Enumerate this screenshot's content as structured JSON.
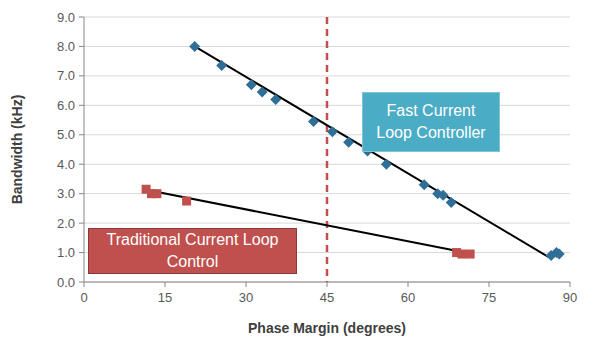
{
  "chart_data": {
    "type": "scatter",
    "x_label": "Phase Margin (degrees)",
    "y_label": "Bandwidth (kHz)",
    "xlim": [
      0,
      90
    ],
    "xticks": [
      0,
      15,
      30,
      45,
      60,
      75,
      90
    ],
    "ylim": [
      0,
      9
    ],
    "yticks": [
      {
        "value": 0,
        "label": "0.0"
      },
      {
        "value": 1,
        "label": "1.0"
      },
      {
        "value": 2,
        "label": "2.0"
      },
      {
        "value": 3,
        "label": "3.0"
      },
      {
        "value": 4,
        "label": "4.0"
      },
      {
        "value": 5,
        "label": "5.0"
      },
      {
        "value": 6,
        "label": "6.0"
      },
      {
        "value": 7,
        "label": "7.0"
      },
      {
        "value": 8,
        "label": "8.0"
      },
      {
        "value": 9,
        "label": "9.0"
      }
    ],
    "grid": true,
    "series": [
      {
        "name": "Fast Current Loop Controller",
        "type": "scatter",
        "marker": "diamond",
        "color": "#2f6f97",
        "x": [
          20.5,
          25.5,
          31,
          33,
          35.5,
          42.5,
          46,
          49,
          52.5,
          56,
          63,
          65.5,
          66.5,
          68,
          86.5,
          87.5,
          88
        ],
        "values": [
          8.0,
          7.35,
          6.7,
          6.45,
          6.2,
          5.45,
          5.1,
          4.75,
          4.45,
          4.0,
          3.3,
          3.0,
          2.95,
          2.7,
          0.9,
          1.0,
          0.95
        ]
      },
      {
        "name": "Traditional Current Loop Control",
        "type": "scatter",
        "marker": "square",
        "color": "#c0504d",
        "x": [
          11.5,
          12.5,
          13.5,
          19,
          69,
          70,
          71.5
        ],
        "values": [
          3.15,
          3.0,
          3.0,
          2.75,
          1.0,
          0.95,
          0.95
        ]
      },
      {
        "type": "line",
        "line_style": "solid",
        "color": "#000000",
        "x": [
          20.5,
          86
        ],
        "values": [
          8.0,
          0.85
        ]
      },
      {
        "type": "line",
        "line_style": "solid",
        "color": "#000000",
        "x": [
          11,
          72
        ],
        "values": [
          3.15,
          0.95
        ]
      }
    ],
    "reference_lines": [
      {
        "x": 45,
        "color": "#c0504d",
        "line_style": "dashed"
      }
    ]
  }
}
